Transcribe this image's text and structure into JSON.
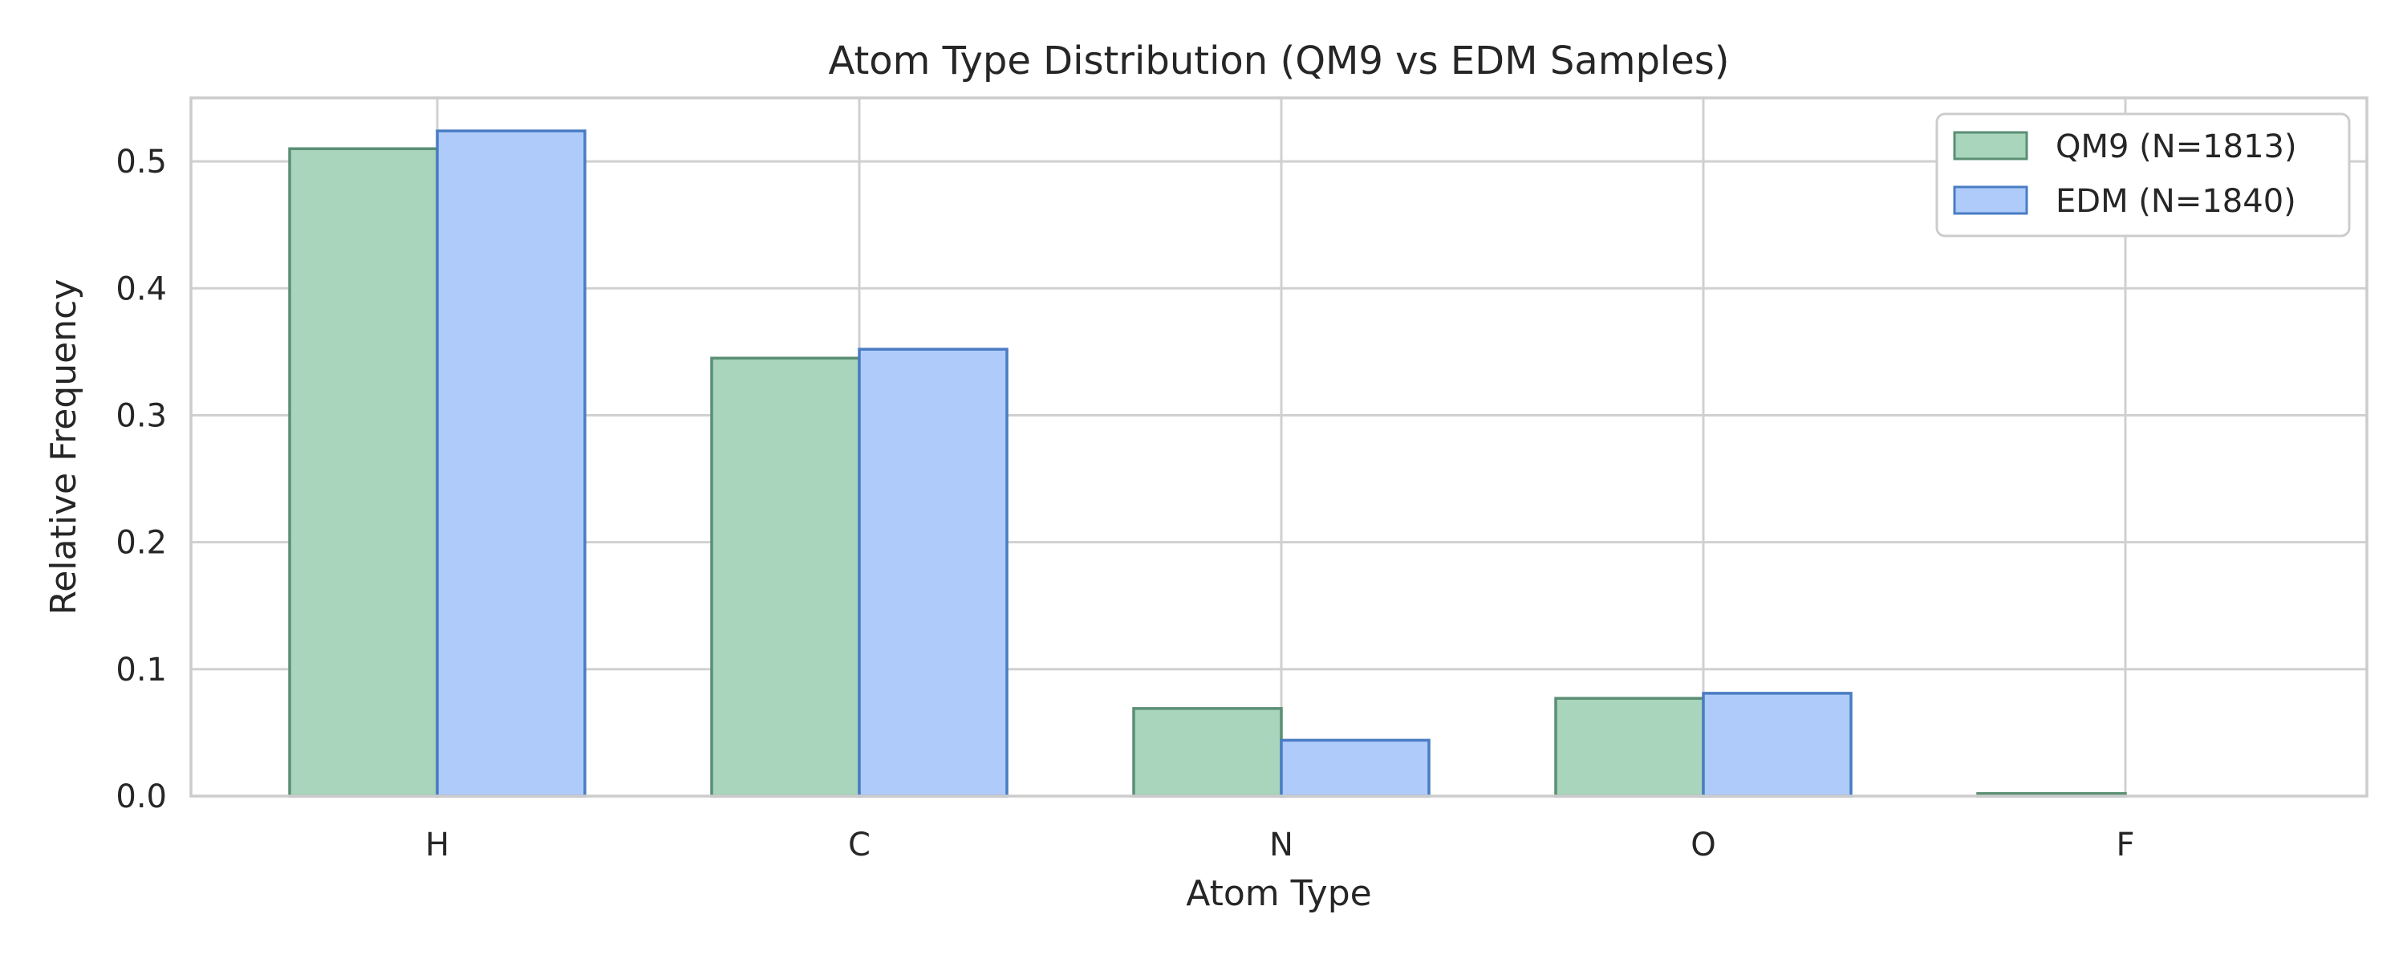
{
  "chart_data": {
    "type": "bar",
    "title": "Atom Type Distribution (QM9 vs EDM Samples)",
    "xlabel": "Atom Type",
    "ylabel": "Relative Frequency",
    "categories": [
      "H",
      "C",
      "N",
      "O",
      "F"
    ],
    "series": [
      {
        "name": "QM9 (N=1813)",
        "values": [
          0.51,
          0.345,
          0.069,
          0.077,
          0.002
        ],
        "color": "#a8d5bb",
        "edge": "#5a8f74"
      },
      {
        "name": "EDM (N=1840)",
        "values": [
          0.524,
          0.352,
          0.044,
          0.081,
          0.0
        ],
        "color": "#aecbfa",
        "edge": "#4a7cc4"
      }
    ],
    "ylim": [
      0,
      0.55
    ],
    "yticks": [
      0.0,
      0.1,
      0.2,
      0.3,
      0.4,
      0.5
    ],
    "ytick_labels": [
      "0.0",
      "0.1",
      "0.2",
      "0.3",
      "0.4",
      "0.5"
    ],
    "grid": true,
    "legend": "top-right"
  }
}
